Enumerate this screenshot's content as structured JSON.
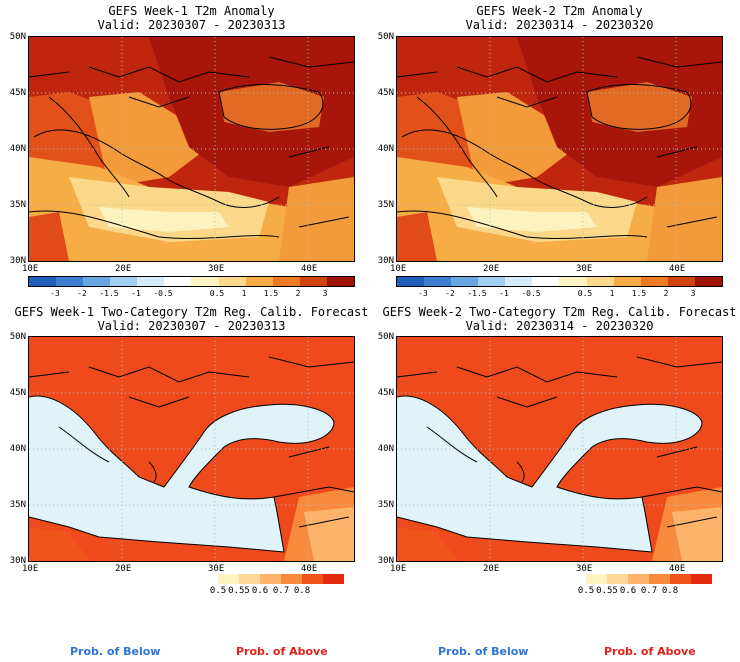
{
  "panels": [
    {
      "title": "GEFS Week-1 T2m Anomaly",
      "valid": "Valid: 20230307 - 20230313"
    },
    {
      "title": "GEFS Week-2 T2m Anomaly",
      "valid": "Valid: 20230314 - 20230320"
    },
    {
      "title": "GEFS Week-1 Two-Category T2m Reg. Calib. Forecast",
      "valid": "Valid: 20230307 - 20230313"
    },
    {
      "title": "GEFS Week-2 Two-Category T2m Reg. Calib. Forecast",
      "valid": "Valid: 20230314 - 20230320"
    }
  ],
  "lat_labels": [
    "50N",
    "45N",
    "40N",
    "35N",
    "30N"
  ],
  "lon_labels": [
    "10E",
    "20E",
    "30E",
    "40E"
  ],
  "anomaly_colorbar": {
    "labels": [
      "-3",
      "-2",
      "-1.5",
      "-1",
      "-0.5",
      "0.5",
      "1",
      "1.5",
      "2",
      "3"
    ],
    "colors": [
      "#1c5fb8",
      "#3a7fd0",
      "#6aa6e2",
      "#a4cdf2",
      "#d6ecfa",
      "#ffffff",
      "#fcf3c0",
      "#fbd88a",
      "#f6ad46",
      "#ee7a24",
      "#d2430e",
      "#a01308"
    ]
  },
  "prob_colorbar": {
    "labels": [
      "0.5",
      "0.55",
      "0.6",
      "0.7",
      "0.8"
    ],
    "colors": [
      "#fff3c2",
      "#fdd79a",
      "#fbb46a",
      "#f78a3c",
      "#f0531c",
      "#e22b0c"
    ]
  },
  "legend": {
    "below_label": "Prob. of Below",
    "above_label": "Prob. of Above",
    "below_color": "#2e74d2",
    "above_color": "#e0201a"
  },
  "map_colors": {
    "sea_light": "#dff3f8",
    "land_above": "#ef4a1c",
    "dark_anom": "#b01c0c",
    "mid_anom": "#de4b16"
  }
}
